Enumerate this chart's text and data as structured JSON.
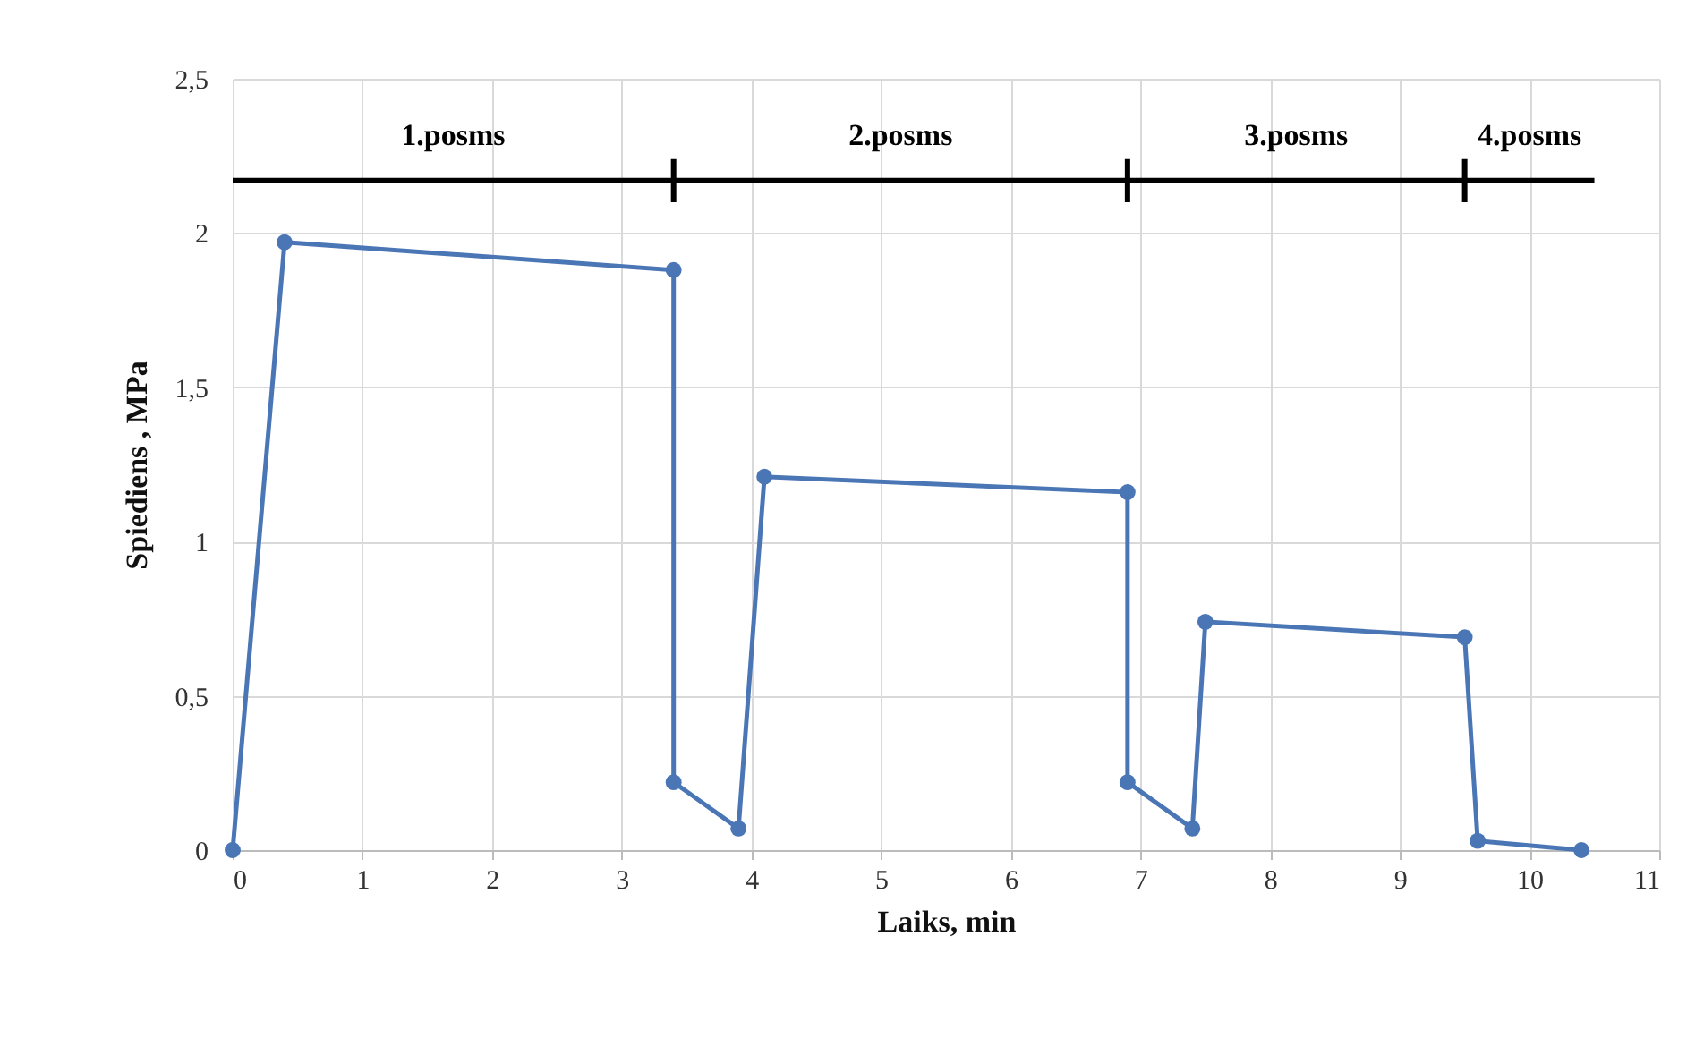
{
  "chart_data": {
    "type": "line",
    "xlabel": "Laiks, min",
    "ylabel": "Spiediens , MPa",
    "series": [
      {
        "color": "#4a76b5",
        "x": [
          0,
          0.4,
          3.4,
          3.4,
          3.9,
          4.1,
          6.9,
          6.9,
          7.4,
          7.5,
          9.5,
          9.6,
          10.4
        ],
        "values": [
          0,
          1.97,
          1.88,
          0.22,
          0.07,
          1.21,
          1.16,
          0.22,
          0.07,
          0.74,
          0.69,
          0.03,
          0
        ]
      },
      {
        "color": "#000000",
        "marker": "none",
        "x": [
          0,
          3.4,
          3.4,
          3.4,
          3.4,
          6.9,
          6.9,
          6.9,
          6.9,
          9.5,
          9.5,
          9.5,
          9.5,
          10.5
        ],
        "values": [
          2.17,
          2.17,
          2.24,
          2.1,
          2.17,
          2.17,
          2.24,
          2.1,
          2.17,
          2.17,
          2.24,
          2.1,
          2.17,
          2.17
        ]
      }
    ],
    "xlim": [
      0,
      11
    ],
    "xticks": [
      0,
      1,
      2,
      3,
      4,
      5,
      6,
      7,
      8,
      9,
      10,
      11
    ],
    "ylim": [
      0,
      2.5
    ],
    "yticks": [
      0,
      {
        "value": 0.5,
        "label": "0,5"
      },
      1,
      {
        "value": 1.5,
        "label": "1,5"
      },
      2,
      {
        "value": 2.5,
        "label": "2,5"
      }
    ],
    "annotations": [
      "1.posms",
      "2.posms",
      "3.posms",
      "4.posms"
    ],
    "grid": true,
    "marker": "circle",
    "line_style": "solid"
  }
}
